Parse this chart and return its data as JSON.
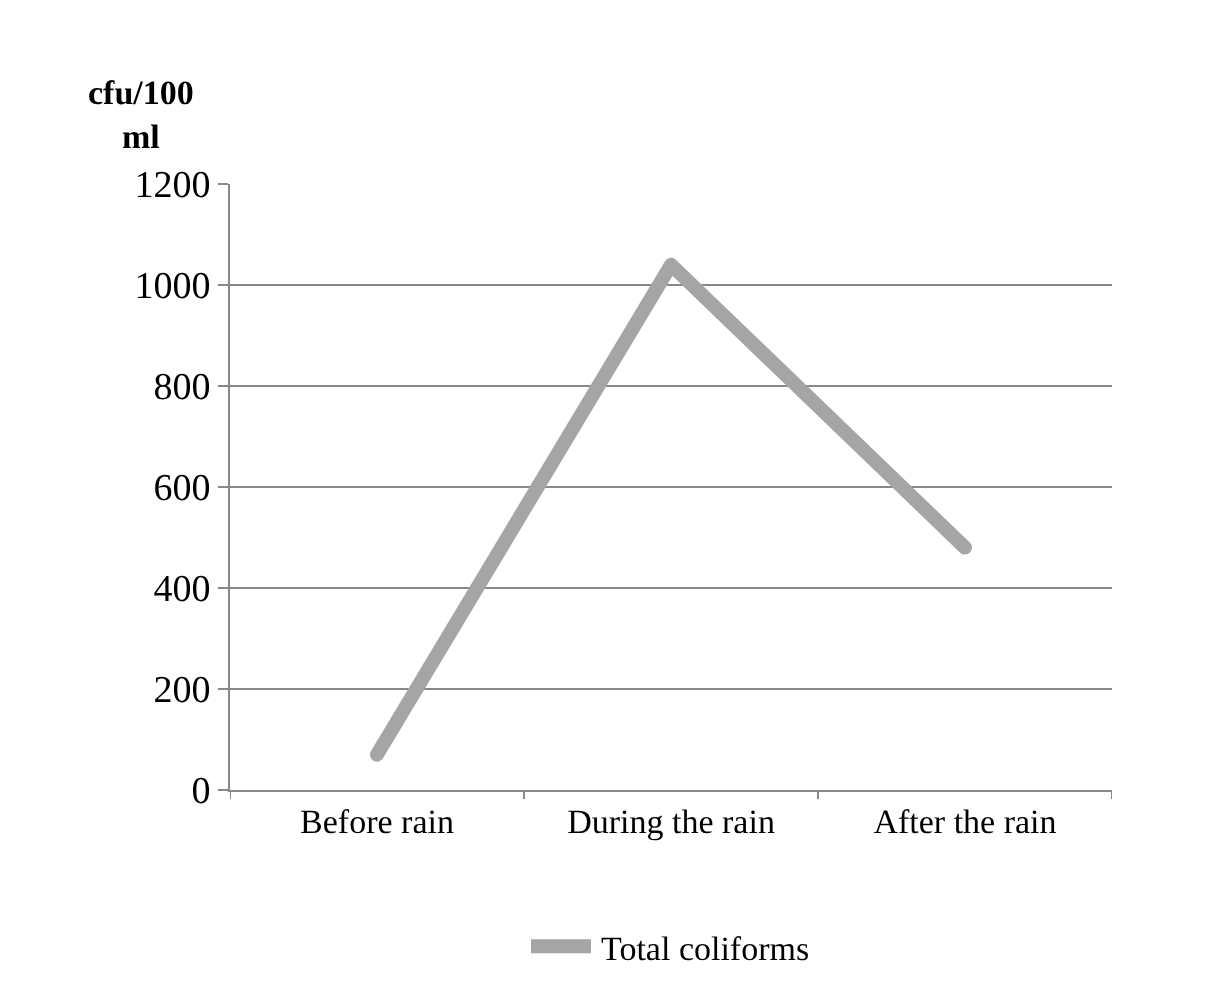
{
  "chart_data": {
    "type": "line",
    "ylabel": "cfu/100 ml",
    "categories": [
      "Before rain",
      "During the rain",
      "After the rain"
    ],
    "series": [
      {
        "name": "Total coliforms",
        "color": "#a5a5a5",
        "values": [
          70,
          1040,
          480
        ]
      }
    ],
    "ylim": [
      0,
      1200
    ],
    "yticks": [
      0,
      200,
      400,
      600,
      800,
      1000,
      1200
    ],
    "grid": "y",
    "legend": "bottom",
    "line_style": "solid"
  }
}
